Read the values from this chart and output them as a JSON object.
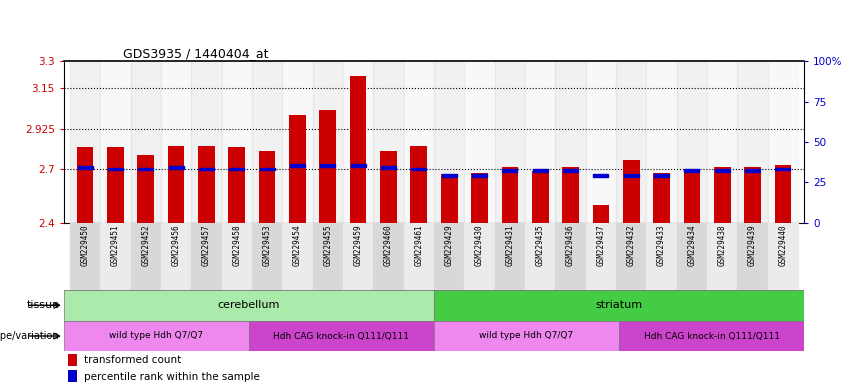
{
  "title": "GDS3935 / 1440404_at",
  "samples": [
    "GSM229450",
    "GSM229451",
    "GSM229452",
    "GSM229456",
    "GSM229457",
    "GSM229458",
    "GSM229453",
    "GSM229454",
    "GSM229455",
    "GSM229459",
    "GSM229460",
    "GSM229461",
    "GSM229429",
    "GSM229430",
    "GSM229431",
    "GSM229435",
    "GSM229436",
    "GSM229437",
    "GSM229432",
    "GSM229433",
    "GSM229434",
    "GSM229438",
    "GSM229439",
    "GSM229440"
  ],
  "red_values": [
    2.82,
    2.82,
    2.78,
    2.83,
    2.83,
    2.82,
    2.8,
    3.0,
    3.03,
    3.22,
    2.8,
    2.83,
    2.67,
    2.68,
    2.71,
    2.69,
    2.71,
    2.5,
    2.75,
    2.68,
    2.7,
    2.71,
    2.71,
    2.72
  ],
  "blue_values": [
    2.71,
    2.7,
    2.7,
    2.71,
    2.7,
    2.7,
    2.7,
    2.72,
    2.72,
    2.72,
    2.71,
    2.7,
    2.663,
    2.663,
    2.69,
    2.69,
    2.69,
    2.663,
    2.663,
    2.663,
    2.69,
    2.69,
    2.69,
    2.7
  ],
  "ymin": 2.4,
  "ymax": 3.3,
  "yticks_left": [
    2.4,
    2.7,
    2.925,
    3.15,
    3.3
  ],
  "ytick_labels_left": [
    "2.4",
    "2.7",
    "2.925",
    "3.15",
    "3.3"
  ],
  "ytick_labels_right": [
    "0",
    "25",
    "50",
    "75",
    "100%"
  ],
  "hlines": [
    2.7,
    2.925,
    3.15
  ],
  "tissue_groups": [
    {
      "label": "cerebellum",
      "start": 0,
      "end": 12,
      "color": "#aaeaaa"
    },
    {
      "label": "striatum",
      "start": 12,
      "end": 24,
      "color": "#44cc44"
    }
  ],
  "genotype_groups": [
    {
      "label": "wild type Hdh Q7/Q7",
      "start": 0,
      "end": 6,
      "color": "#ee88ee"
    },
    {
      "label": "Hdh CAG knock-in Q111/Q111",
      "start": 6,
      "end": 12,
      "color": "#cc44cc"
    },
    {
      "label": "wild type Hdh Q7/Q7",
      "start": 12,
      "end": 18,
      "color": "#ee88ee"
    },
    {
      "label": "Hdh CAG knock-in Q111/Q111",
      "start": 18,
      "end": 24,
      "color": "#cc44cc"
    }
  ],
  "bar_color": "#cc0000",
  "blue_color": "#0000cc",
  "bar_width": 0.55
}
